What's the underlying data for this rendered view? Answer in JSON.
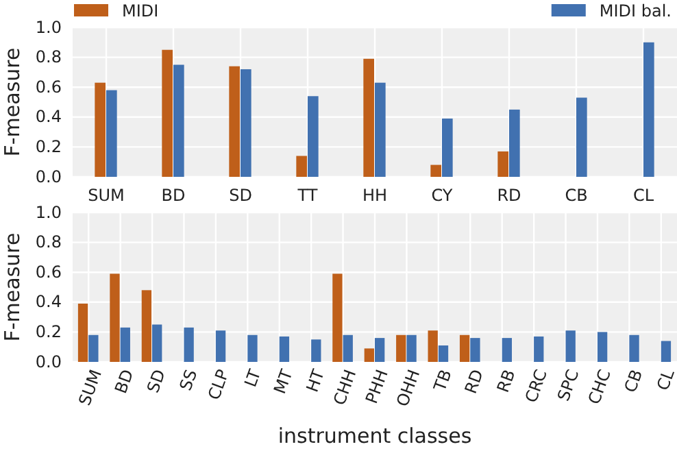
{
  "chart_data": [
    {
      "type": "bar",
      "ylabel": "F-measure",
      "categories": [
        "SUM",
        "BD",
        "SD",
        "TT",
        "HH",
        "CY",
        "RD",
        "CB",
        "CL"
      ],
      "ylim": [
        0,
        1
      ],
      "yticks": [
        {
          "value": 0,
          "label": "0.0"
        },
        {
          "value": 0.2,
          "label": "0.2"
        },
        {
          "value": 0.4,
          "label": "0.4"
        },
        {
          "value": 0.6,
          "label": "0.6"
        },
        {
          "value": 0.8,
          "label": "0.8"
        },
        {
          "value": 1,
          "label": "1.0"
        }
      ],
      "grid": true,
      "legend": "top",
      "series": [
        {
          "name": "MIDI",
          "color": "#bf5f1a",
          "values": [
            0.63,
            0.85,
            0.74,
            0.14,
            0.79,
            0.08,
            0.17,
            null,
            null
          ]
        },
        {
          "name": "MIDI bal.",
          "color": "#4171b0",
          "values": [
            0.58,
            0.75,
            0.72,
            0.54,
            0.63,
            0.39,
            0.45,
            0.53,
            0.9
          ]
        }
      ]
    },
    {
      "type": "bar",
      "ylabel": "F-measure",
      "xlabel": "instrument classes",
      "categories": [
        "SUM",
        "BD",
        "SD",
        "SS",
        "CLP",
        "LT",
        "MT",
        "HT",
        "CHH",
        "PHH",
        "OHH",
        "TB",
        "RD",
        "RB",
        "CRC",
        "SPC",
        "CHC",
        "CB",
        "CL"
      ],
      "ylim": [
        0,
        1
      ],
      "yticks": [
        {
          "value": 0,
          "label": "0.0"
        },
        {
          "value": 0.2,
          "label": "0.2"
        },
        {
          "value": 0.4,
          "label": "0.4"
        },
        {
          "value": 0.6,
          "label": "0.6"
        },
        {
          "value": 0.8,
          "label": "0.8"
        },
        {
          "value": 1,
          "label": "1.0"
        }
      ],
      "grid": true,
      "series": [
        {
          "color": "#bf5f1a",
          "values": [
            0.39,
            0.59,
            0.48,
            null,
            null,
            null,
            null,
            null,
            0.59,
            0.09,
            0.18,
            0.21,
            0.18,
            null,
            null,
            null,
            null,
            null,
            null
          ]
        },
        {
          "color": "#4171b0",
          "values": [
            0.18,
            0.23,
            0.25,
            0.23,
            0.21,
            0.18,
            0.17,
            0.15,
            0.18,
            0.16,
            0.18,
            0.11,
            0.16,
            0.16,
            0.17,
            0.21,
            0.2,
            0.18,
            0.14
          ]
        }
      ]
    }
  ]
}
